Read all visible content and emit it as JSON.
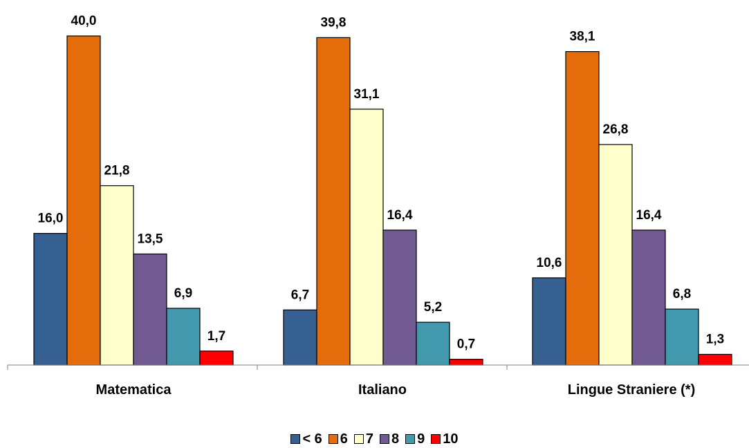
{
  "chart_data": {
    "type": "bar",
    "categories": [
      "Matematica",
      "Italiano",
      "Lingue Straniere (*)"
    ],
    "series": [
      {
        "name": "< 6",
        "color": "#366092",
        "values": [
          16.0,
          6.7,
          10.6
        ],
        "labels": [
          "16,0",
          "6,7",
          "10,6"
        ]
      },
      {
        "name": "6",
        "color": "#E46C0A",
        "values": [
          40.0,
          39.8,
          38.1
        ],
        "labels": [
          "40,0",
          "39,8",
          "38,1"
        ]
      },
      {
        "name": "7",
        "color": "#FFFFCC",
        "values": [
          21.8,
          31.1,
          26.8
        ],
        "labels": [
          "21,8",
          "31,1",
          "26,8"
        ]
      },
      {
        "name": "8",
        "color": "#715A91",
        "values": [
          13.5,
          16.4,
          16.4
        ],
        "labels": [
          "13,5",
          "16,4",
          "16,4"
        ]
      },
      {
        "name": "9",
        "color": "#4299AE",
        "values": [
          6.9,
          5.2,
          6.8
        ],
        "labels": [
          "6,9",
          "5,2",
          "6,8"
        ]
      },
      {
        "name": "10",
        "color": "#FF0000",
        "values": [
          1.7,
          0.7,
          1.3
        ],
        "labels": [
          "1,7",
          "0,7",
          "1,3"
        ]
      }
    ],
    "ylim": [
      0,
      40
    ],
    "grid": false,
    "legend_position": "bottom"
  }
}
